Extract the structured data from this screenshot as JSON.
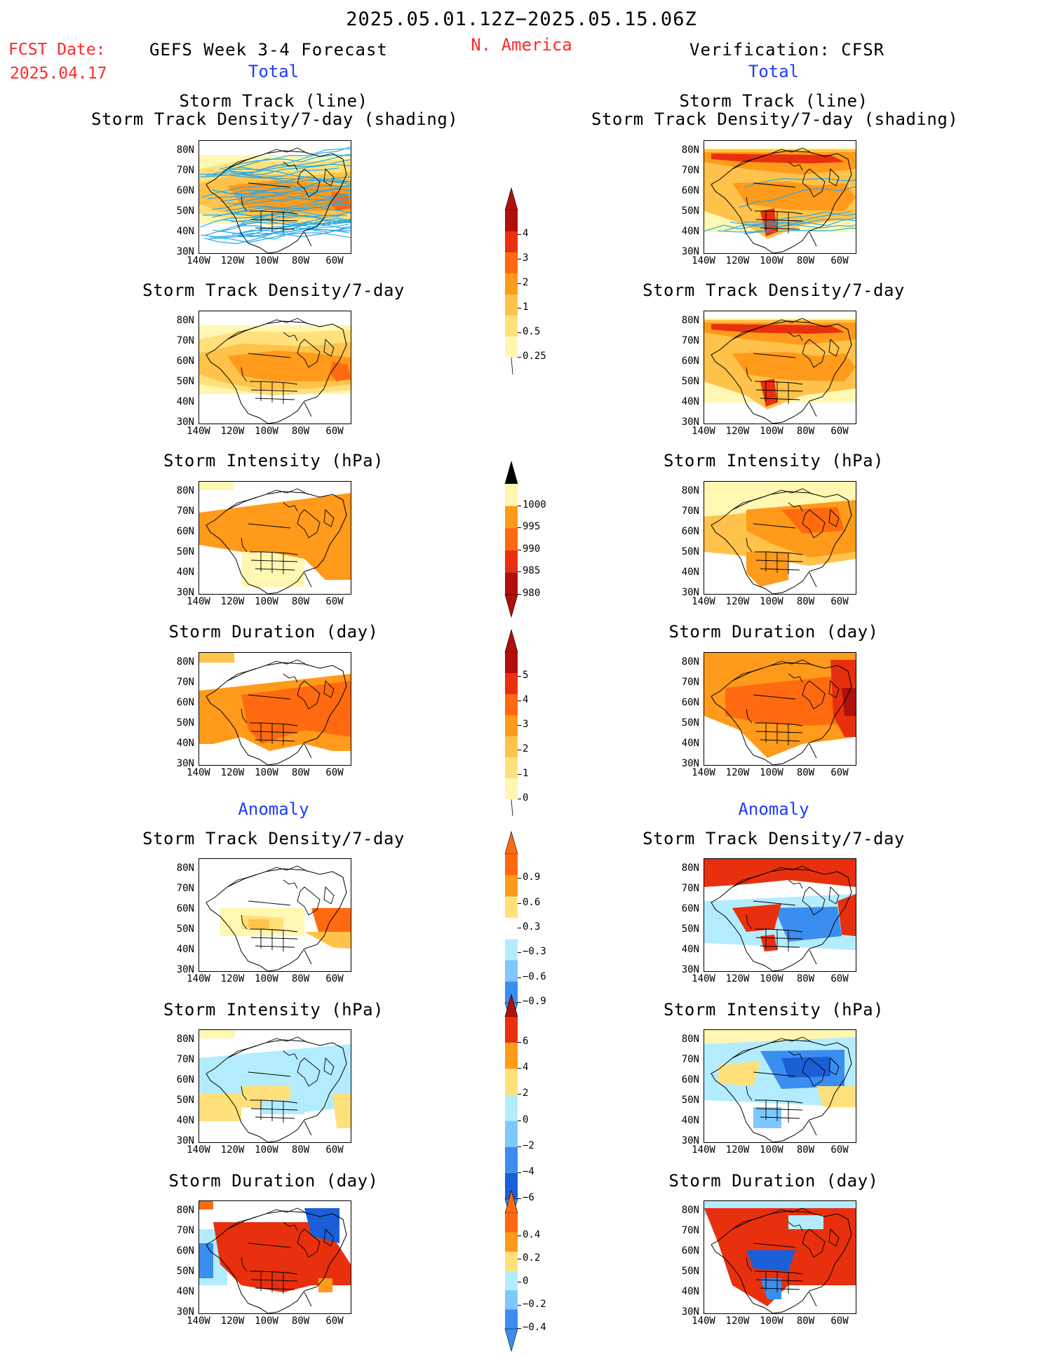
{
  "header": {
    "date_range": "2025.05.01.12Z−2025.05.15.06Z",
    "fcst_label": "FCST Date:",
    "fcst_date": "2025.04.17",
    "left_title": "GEFS Week 3-4 Forecast",
    "region": "N. America",
    "right_title": "Verification: CFSR",
    "total_label": "Total",
    "anomaly_label": "Anomaly"
  },
  "panel_titles": {
    "track_line": "Storm Track (line)",
    "track_shading": "Storm Track Density/7-day (shading)",
    "density": "Storm Track Density/7-day",
    "intensity": "Storm Intensity (hPa)",
    "duration": "Storm Duration (day)"
  },
  "axes": {
    "lat_ticks": [
      "80N",
      "70N",
      "60N",
      "50N",
      "40N",
      "30N"
    ],
    "lon_ticks": [
      "140W",
      "120W",
      "100W",
      "80W",
      "60W"
    ]
  },
  "colorbars": {
    "density": [
      "4",
      "3",
      "2",
      "1",
      "0.5",
      "0.25"
    ],
    "intensity": [
      "1000",
      "995",
      "990",
      "985",
      "980"
    ],
    "duration": [
      "5",
      "4",
      "3",
      "2",
      "1",
      "0"
    ],
    "density_anom": [
      "0.9",
      "0.6",
      "0.3",
      "−0.3",
      "−0.6",
      "−0.9"
    ],
    "intensity_anom": [
      "6",
      "4",
      "2",
      "0",
      "−2",
      "−4",
      "−6"
    ],
    "duration_anom": [
      "0.4",
      "0.2",
      "0",
      "−0.2",
      "−0.4"
    ]
  },
  "colors": {
    "light_yellow": "#fff7b2",
    "yellow": "#ffe07a",
    "light_orange": "#ffc24a",
    "orange": "#ff9a1a",
    "dark_orange": "#ff6a10",
    "red": "#e8300e",
    "dark_red": "#b0100a",
    "light_blue": "#b4ecff",
    "mid_blue": "#7fc8ff",
    "blue": "#3a8ef0",
    "dark_blue": "#1a5fd6",
    "track_line": "#29a9e8"
  }
}
